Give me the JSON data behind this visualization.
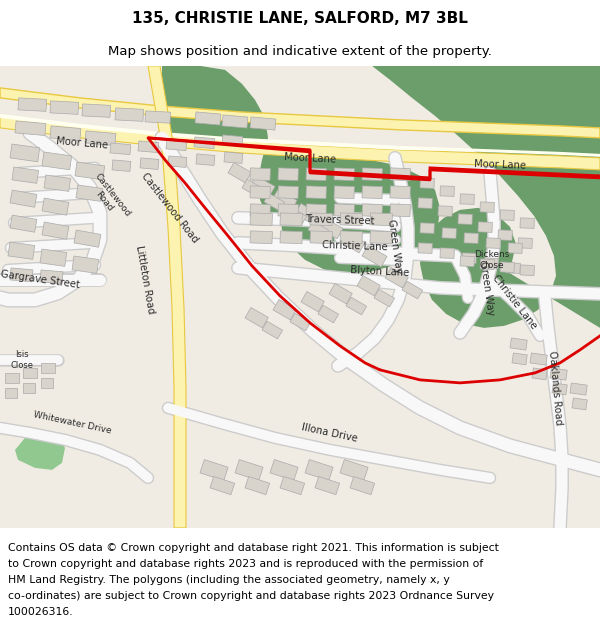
{
  "title_line1": "135, CHRISTIE LANE, SALFORD, M7 3BL",
  "title_line2": "Map shows position and indicative extent of the property.",
  "copyright_text": "Contains OS data © Crown copyright and database right 2021. This information is subject to Crown copyright and database rights 2023 and is reproduced with the permission of HM Land Registry. The polygons (including the associated geometry, namely x, y co-ordinates) are subject to Crown copyright and database rights 2023 Ordnance Survey 100026316.",
  "map_bg_color": "#f0ece3",
  "green_color": "#6b9e6b",
  "light_green": "#90c890",
  "road_color": "#ffffff",
  "yellow_road_fill": "#fdf3b0",
  "yellow_road_edge": "#e8c840",
  "plot_outline_color": "#dd0000",
  "building_color": "#d8d4cc",
  "building_outline": "#aaaaaa",
  "title_fontsize": 11,
  "subtitle_fontsize": 9.5,
  "copyright_fontsize": 7.8,
  "figsize": [
    6.0,
    6.25
  ],
  "dpi": 100
}
